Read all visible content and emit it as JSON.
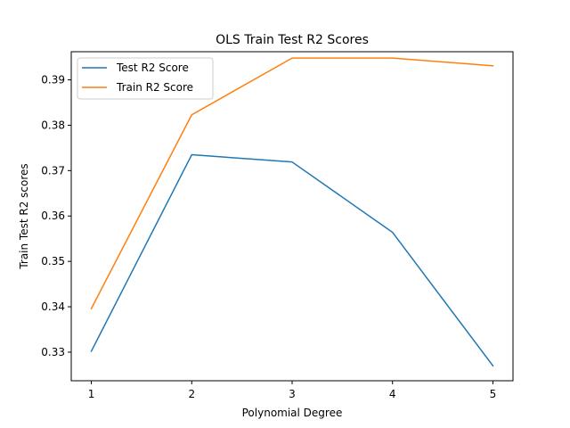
{
  "chart_data": {
    "type": "line",
    "title": "OLS Train Test R2 Scores",
    "xlabel": "Polynomial Degree",
    "ylabel": "Train Test R2 scores",
    "x": [
      1,
      2,
      3,
      4,
      5
    ],
    "xticks": [
      1,
      2,
      3,
      4,
      5
    ],
    "xtick_labels": [
      "1",
      "2",
      "3",
      "4",
      "5"
    ],
    "xlim": [
      0.8,
      5.2
    ],
    "yticks": [
      0.33,
      0.34,
      0.35,
      0.36,
      0.37,
      0.38,
      0.39
    ],
    "ytick_labels": [
      "0.33",
      "0.34",
      "0.35",
      "0.36",
      "0.37",
      "0.38",
      "0.39"
    ],
    "ylim": [
      0.3237,
      0.3962
    ],
    "grid": false,
    "legend": {
      "placement": "top-left"
    },
    "series": [
      {
        "name": "Test R2 Score",
        "color": "#1f77b4",
        "values": [
          0.3302,
          0.3735,
          0.3719,
          0.3564,
          0.327
        ]
      },
      {
        "name": "Train R2 Score",
        "color": "#ff7f0e",
        "values": [
          0.3396,
          0.3823,
          0.3948,
          0.3948,
          0.3931
        ]
      }
    ]
  }
}
